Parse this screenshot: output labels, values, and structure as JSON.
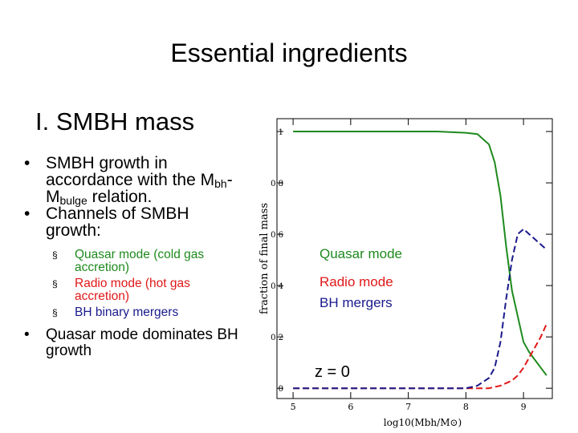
{
  "slide": {
    "title": "Essential ingredients",
    "heading": "I. SMBH mass",
    "bullets": [
      [
        "SMBH growth in accordance with the M",
        "bh",
        "-M",
        "bulge",
        " relation."
      ],
      "Channels of SMBH growth:",
      "Quasar mode dominates BH growth"
    ],
    "sub_bullets": [
      "Quasar mode (cold gas accretion)",
      "Radio mode (hot gas accretion)",
      "BH binary mergers"
    ]
  },
  "chart_data": {
    "type": "line",
    "xlabel": "log10(Mbh/M⊙)",
    "ylabel": "fraction of final mass",
    "annotation": "z = 0",
    "x": [
      5,
      5.5,
      6,
      6.5,
      7,
      7.5,
      8,
      8.2,
      8.4,
      8.5,
      8.6,
      8.7,
      8.8,
      8.9,
      9,
      9.1,
      9.2,
      9.3,
      9.4
    ],
    "series": [
      {
        "name": "Quasar mode",
        "color": "#1e8a1e",
        "line_style": "solid",
        "values": [
          1,
          1,
          1,
          1,
          1,
          1,
          0.995,
          0.99,
          0.95,
          0.88,
          0.75,
          0.55,
          0.38,
          0.28,
          0.18,
          0.14,
          0.11,
          0.08,
          0.05
        ]
      },
      {
        "name": "Radio mode",
        "color": "#e01818",
        "line_style": "dashed",
        "values": [
          0,
          0,
          0,
          0,
          0,
          0,
          0,
          0,
          0,
          0.005,
          0.01,
          0.02,
          0.03,
          0.05,
          0.08,
          0.12,
          0.16,
          0.2,
          0.25
        ]
      },
      {
        "name": "BH mergers",
        "color": "#1a1a8c",
        "line_style": "dashed",
        "values": [
          0,
          0,
          0,
          0,
          0,
          0,
          0,
          0.01,
          0.04,
          0.08,
          0.18,
          0.35,
          0.5,
          0.6,
          0.62,
          0.6,
          0.58,
          0.56,
          0.54
        ]
      }
    ],
    "xlim": [
      4.72,
      9.5
    ],
    "ylim": [
      -0.04,
      1.05
    ],
    "xticks": [
      5,
      6,
      7,
      8,
      9
    ],
    "yticks": [
      0,
      0.2,
      0.4,
      0.6,
      0.8,
      1
    ]
  }
}
